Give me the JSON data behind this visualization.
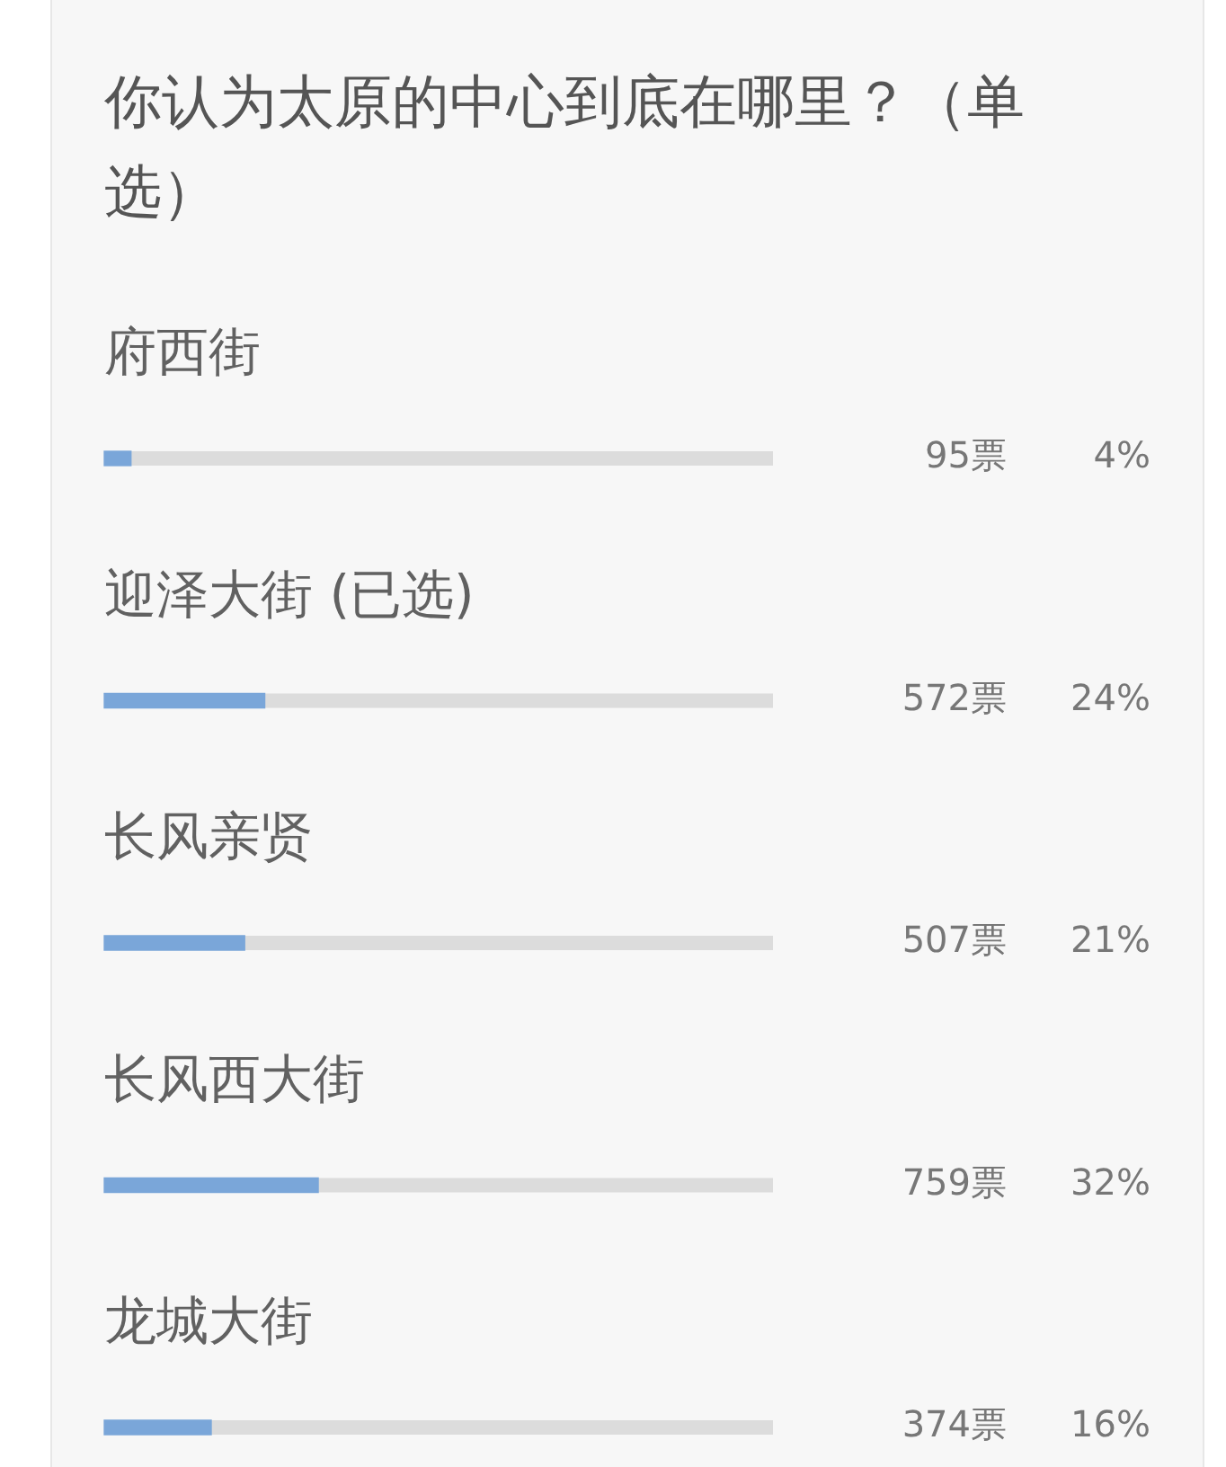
{
  "chart_data": {
    "type": "bar",
    "orientation": "horizontal",
    "title": "你认为太原的中心到底在哪里？（单选）",
    "categories": [
      "府西街",
      "迎泽大街 (已选)",
      "长风亲贤",
      "长风西大街",
      "龙城大街"
    ],
    "values": [
      4,
      24,
      21,
      32,
      16
    ],
    "value_labels": [
      "4%",
      "24%",
      "21%",
      "32%",
      "16%"
    ],
    "color": "#7aa6d9",
    "xlim": [
      0,
      100
    ],
    "tick_labels": "y",
    "annotations": [
      "95票",
      "572票",
      "507票",
      "759票",
      "374票"
    ]
  }
}
